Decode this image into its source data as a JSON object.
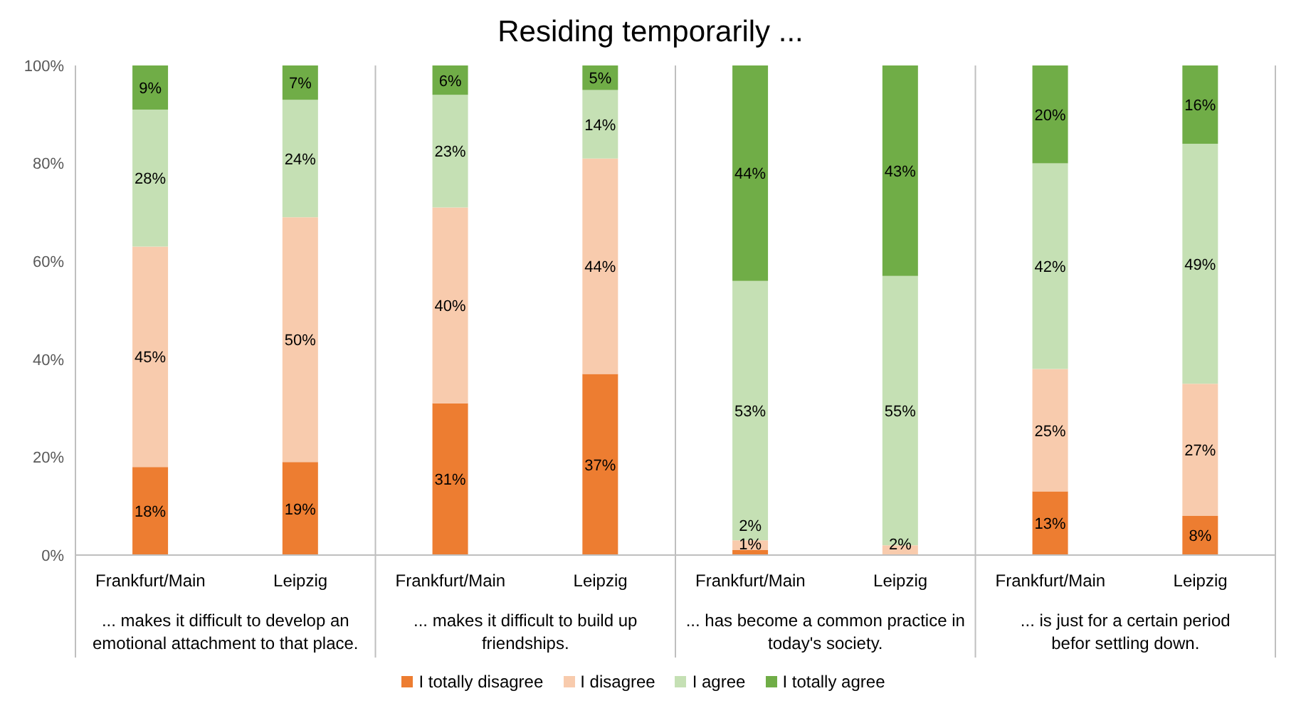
{
  "chart_data": {
    "type": "bar",
    "title": "Residing temporarily ...",
    "stacked": true,
    "categories": [
      "Frankfurt/Main",
      "Leipzig",
      "Frankfurt/Main",
      "Leipzig",
      "Frankfurt/Main",
      "Leipzig",
      "Frankfurt/Main",
      "Leipzig"
    ],
    "annotations": [
      "... makes it difficult to develop an emotional attachment to that place.",
      "... makes it difficult to build up friendships.",
      "... has become a common practice in today's society.",
      "... is just for a certain period befor settling down."
    ],
    "series": [
      {
        "name": "I totally disagree",
        "color": "#ed7d31",
        "values": [
          18,
          19,
          31,
          37,
          1,
          0,
          13,
          8
        ],
        "value_labels": [
          "18%",
          "19%",
          "31%",
          "37%",
          "1%",
          null,
          "13%",
          "8%"
        ]
      },
      {
        "name": "I disagree",
        "color": "#f8cbad",
        "values": [
          45,
          50,
          40,
          44,
          2,
          2,
          25,
          27
        ],
        "value_labels": [
          "45%",
          "50%",
          "40%",
          "44%",
          "2%",
          "2%",
          "25%",
          "27%"
        ]
      },
      {
        "name": "I agree",
        "color": "#c5e0b4",
        "values": [
          28,
          24,
          23,
          14,
          53,
          55,
          42,
          49
        ],
        "value_labels": [
          "28%",
          "24%",
          "23%",
          "14%",
          "53%",
          "55%",
          "42%",
          "49%"
        ]
      },
      {
        "name": "I totally agree",
        "color": "#70ad47",
        "values": [
          9,
          7,
          6,
          5,
          44,
          43,
          20,
          16
        ],
        "value_labels": [
          "9%",
          "7%",
          "6%",
          "5%",
          "44%",
          "43%",
          "20%",
          "16%"
        ]
      }
    ],
    "ylim": [
      0,
      100
    ],
    "yticks": [
      {
        "value": 0,
        "label": "0%"
      },
      {
        "value": 20,
        "label": "20%"
      },
      {
        "value": 40,
        "label": "40%"
      },
      {
        "value": 60,
        "label": "60%"
      },
      {
        "value": 80,
        "label": "80%"
      },
      {
        "value": 100,
        "label": "100%"
      }
    ],
    "grid": false,
    "legend": "bottom"
  }
}
